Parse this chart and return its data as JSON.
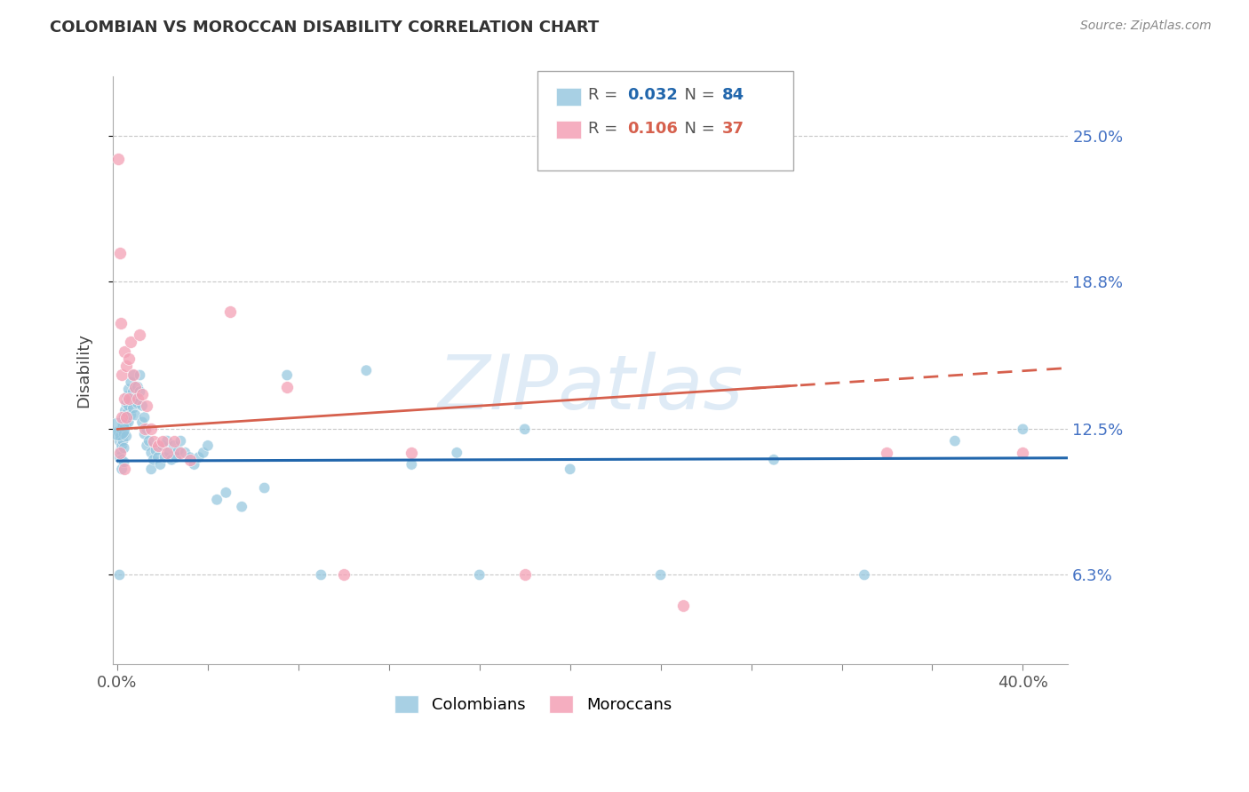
{
  "title": "COLOMBIAN VS MOROCCAN DISABILITY CORRELATION CHART",
  "source": "Source: ZipAtlas.com",
  "ylabel": "Disability",
  "ytick_labels": [
    "6.3%",
    "12.5%",
    "18.8%",
    "25.0%"
  ],
  "ytick_values": [
    0.063,
    0.125,
    0.188,
    0.25
  ],
  "xlim": [
    -0.002,
    0.42
  ],
  "ylim": [
    0.025,
    0.275
  ],
  "blue_R": "0.032",
  "blue_N": "84",
  "pink_R": "0.106",
  "pink_N": "37",
  "blue_color": "#92c5de",
  "pink_color": "#f4a0b5",
  "blue_line_color": "#2166ac",
  "pink_line_color": "#d6604d",
  "legend_label_blue": "Colombians",
  "legend_label_pink": "Moroccans",
  "blue_trendline_slope": 0.003,
  "blue_trendline_intercept": 0.1115,
  "pink_trendline_slope": 0.062,
  "pink_trendline_intercept": 0.125,
  "blue_points_x": [
    0.0005,
    0.001,
    0.001,
    0.0015,
    0.0015,
    0.002,
    0.002,
    0.002,
    0.002,
    0.0025,
    0.0025,
    0.003,
    0.003,
    0.003,
    0.003,
    0.0035,
    0.0035,
    0.004,
    0.004,
    0.004,
    0.0045,
    0.0045,
    0.005,
    0.005,
    0.005,
    0.006,
    0.006,
    0.006,
    0.007,
    0.007,
    0.007,
    0.008,
    0.008,
    0.009,
    0.009,
    0.01,
    0.01,
    0.011,
    0.011,
    0.012,
    0.012,
    0.013,
    0.013,
    0.014,
    0.015,
    0.015,
    0.016,
    0.017,
    0.018,
    0.019,
    0.02,
    0.021,
    0.022,
    0.023,
    0.024,
    0.025,
    0.026,
    0.027,
    0.028,
    0.03,
    0.032,
    0.034,
    0.036,
    0.038,
    0.04,
    0.044,
    0.048,
    0.055,
    0.065,
    0.075,
    0.09,
    0.11,
    0.13,
    0.16,
    0.2,
    0.24,
    0.29,
    0.33,
    0.37,
    0.4,
    0.18,
    0.15,
    0.0005,
    0.001
  ],
  "blue_points_y": [
    0.124,
    0.12,
    0.113,
    0.122,
    0.116,
    0.125,
    0.118,
    0.112,
    0.108,
    0.127,
    0.12,
    0.13,
    0.123,
    0.117,
    0.111,
    0.133,
    0.126,
    0.136,
    0.128,
    0.122,
    0.139,
    0.132,
    0.142,
    0.135,
    0.128,
    0.145,
    0.138,
    0.131,
    0.148,
    0.141,
    0.134,
    0.138,
    0.131,
    0.143,
    0.136,
    0.148,
    0.141,
    0.135,
    0.128,
    0.13,
    0.123,
    0.125,
    0.118,
    0.12,
    0.115,
    0.108,
    0.112,
    0.116,
    0.113,
    0.11,
    0.118,
    0.113,
    0.12,
    0.115,
    0.112,
    0.118,
    0.113,
    0.116,
    0.12,
    0.115,
    0.113,
    0.11,
    0.113,
    0.115,
    0.118,
    0.095,
    0.098,
    0.092,
    0.1,
    0.148,
    0.063,
    0.15,
    0.11,
    0.063,
    0.108,
    0.063,
    0.112,
    0.063,
    0.12,
    0.125,
    0.125,
    0.115,
    0.125,
    0.063
  ],
  "blue_large_size": 350,
  "blue_large_idx": 82,
  "blue_regular_size": 80,
  "pink_points_x": [
    0.0005,
    0.001,
    0.0015,
    0.002,
    0.002,
    0.003,
    0.003,
    0.004,
    0.004,
    0.005,
    0.005,
    0.006,
    0.007,
    0.008,
    0.009,
    0.01,
    0.011,
    0.012,
    0.013,
    0.015,
    0.016,
    0.018,
    0.02,
    0.022,
    0.025,
    0.028,
    0.032,
    0.05,
    0.075,
    0.1,
    0.13,
    0.18,
    0.25,
    0.34,
    0.4,
    0.001,
    0.003
  ],
  "pink_points_y": [
    0.24,
    0.2,
    0.17,
    0.148,
    0.13,
    0.158,
    0.138,
    0.152,
    0.13,
    0.155,
    0.138,
    0.162,
    0.148,
    0.143,
    0.138,
    0.165,
    0.14,
    0.125,
    0.135,
    0.125,
    0.12,
    0.118,
    0.12,
    0.115,
    0.12,
    0.115,
    0.112,
    0.175,
    0.143,
    0.063,
    0.115,
    0.063,
    0.05,
    0.115,
    0.115,
    0.115,
    0.108
  ],
  "pink_size": 100,
  "watermark_text": "ZIPatlas",
  "background_color": "#ffffff",
  "grid_color": "#c8c8c8",
  "xtick_positions": [
    0.0,
    0.04,
    0.08,
    0.12,
    0.16,
    0.2,
    0.24,
    0.28,
    0.32,
    0.36,
    0.4
  ],
  "xtick_labels_show": [
    "0.0%",
    "",
    "",
    "",
    "",
    "",
    "",
    "",
    "",
    "",
    "40.0%"
  ]
}
